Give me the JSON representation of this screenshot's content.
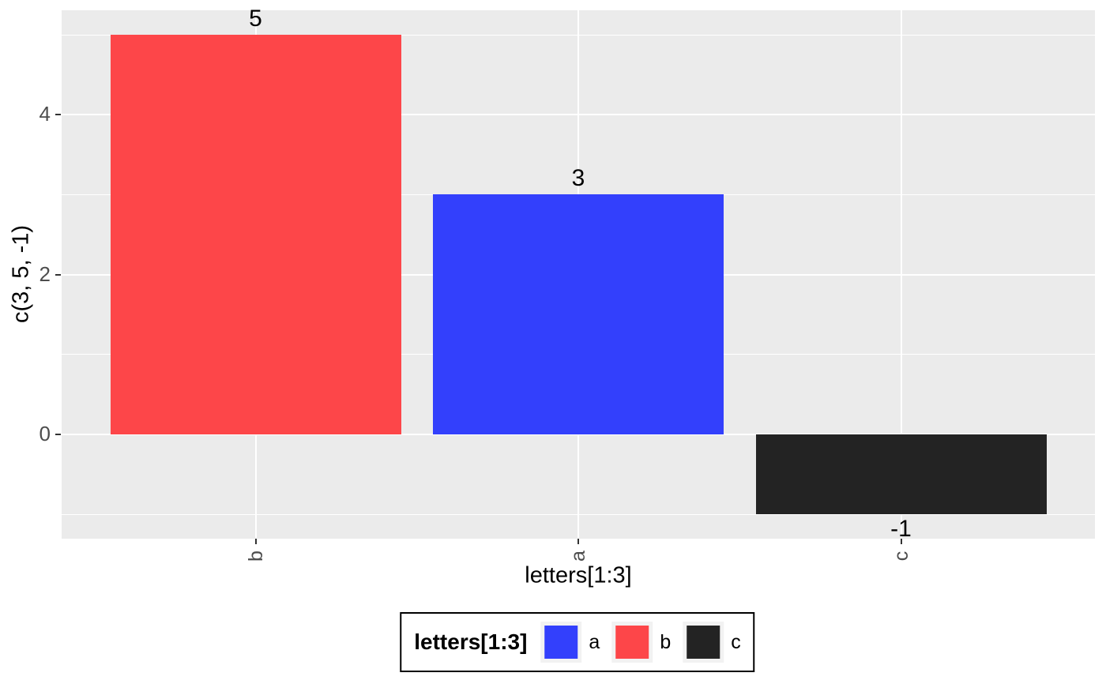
{
  "chart_data": {
    "type": "bar",
    "title": "",
    "categories": [
      "b",
      "a",
      "c"
    ],
    "values": [
      5,
      3,
      -1
    ],
    "bar_labels": [
      "5",
      "3",
      "-1"
    ],
    "bar_colors": [
      "#FD4649",
      "#3340FC",
      "#232323"
    ],
    "xlabel": "letters[1:3]",
    "ylabel": "c(3, 5, -1)",
    "y_ticks": [
      "0",
      "2",
      "4"
    ],
    "y_tick_values": [
      0,
      2,
      4
    ],
    "y_minor_values": [
      -1,
      1,
      3,
      5
    ],
    "ylim": [
      -1.3,
      5.3
    ],
    "grid": "on",
    "legend": {
      "title": "letters[1:3]",
      "position": "bottom",
      "entries": [
        {
          "label": "a",
          "color": "#3340FC"
        },
        {
          "label": "b",
          "color": "#FD4649"
        },
        {
          "label": "c",
          "color": "#232323"
        }
      ]
    },
    "colors": {
      "panel_bg": "#EBEBEB",
      "grid": "#FFFFFF",
      "tick_text": "#4D4D4D",
      "axis_text": "#000000",
      "legend_key_bg": "#F2F2F2",
      "legend_border": "#000000",
      "page_bg": "#FFFFFF"
    }
  }
}
